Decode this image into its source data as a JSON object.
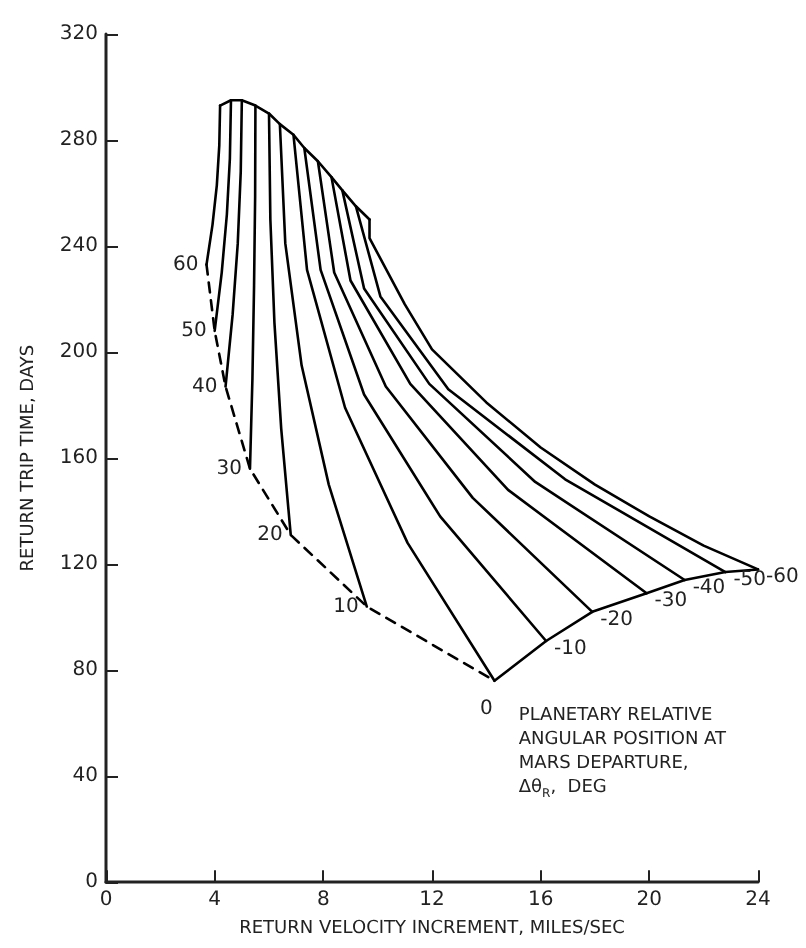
{
  "chart_data": {
    "type": "line",
    "xlabel": "RETURN VELOCITY INCREMENT, MILES/SEC",
    "ylabel": "RETURN TRIP TIME, DAYS",
    "xlim": [
      0,
      24
    ],
    "xticks": [
      0,
      4,
      8,
      12,
      16,
      20,
      24
    ],
    "ylim": [
      0,
      320
    ],
    "yticks": [
      0,
      40,
      80,
      120,
      160,
      200,
      240,
      280,
      320
    ],
    "grid": false,
    "legend": false,
    "marker": "none",
    "line_style": "solid",
    "annotations": [
      "PLANETARY RELATIVE\nANGULAR POSITION AT\nMARS DEPARTURE,\nΔθ$_{R}$,  DEG"
    ],
    "series": [
      {
        "name": "60",
        "color": "#000000",
        "x": [
          4.2,
          4.17,
          4.08,
          3.92,
          3.7
        ],
        "values": [
          293,
          278,
          263,
          248,
          233
        ]
      },
      {
        "name": "50",
        "color": "#000000",
        "x": [
          4.6,
          4.56,
          4.45,
          4.26,
          4.0
        ],
        "values": [
          295,
          273,
          252,
          230,
          208
        ]
      },
      {
        "name": "40",
        "color": "#000000",
        "x": [
          5.0,
          4.96,
          4.85,
          4.66,
          4.4
        ],
        "values": [
          295,
          268,
          241,
          214,
          187
        ]
      },
      {
        "name": "30",
        "color": "#000000",
        "x": [
          5.5,
          5.49,
          5.45,
          5.39,
          5.3
        ],
        "values": [
          293,
          259,
          225,
          190,
          156
        ]
      },
      {
        "name": "20",
        "color": "#000000",
        "x": [
          6.0,
          6.05,
          6.2,
          6.45,
          6.8
        ],
        "values": [
          290,
          250,
          211,
          171,
          131
        ]
      },
      {
        "name": "10",
        "color": "#000000",
        "x": [
          6.4,
          6.6,
          7.2,
          8.2,
          9.6
        ],
        "values": [
          286,
          241,
          195,
          150,
          104
        ]
      },
      {
        "name": "0",
        "color": "#000000",
        "x": [
          6.9,
          7.4,
          8.8,
          11.1,
          14.3
        ],
        "values": [
          282,
          231,
          179,
          128,
          76
        ]
      },
      {
        "name": "-10",
        "color": "#000000",
        "x": [
          7.3,
          7.9,
          9.5,
          12.3,
          16.2
        ],
        "values": [
          277,
          231,
          184,
          138,
          91
        ]
      },
      {
        "name": "-20",
        "color": "#000000",
        "x": [
          7.8,
          8.4,
          10.3,
          13.5,
          17.9
        ],
        "values": [
          272,
          230,
          187,
          145,
          102
        ]
      },
      {
        "name": "-30",
        "color": "#000000",
        "x": [
          8.3,
          9.0,
          11.2,
          14.8,
          19.9
        ],
        "values": [
          266,
          227,
          188,
          148,
          109
        ]
      },
      {
        "name": "-40",
        "color": "#000000",
        "x": [
          8.7,
          9.5,
          11.9,
          15.8,
          21.3
        ],
        "values": [
          261,
          224,
          188,
          151,
          114
        ]
      },
      {
        "name": "-50",
        "color": "#000000",
        "x": [
          9.2,
          10.1,
          12.6,
          16.9,
          22.8
        ],
        "values": [
          255,
          221,
          186,
          152,
          117
        ]
      },
      {
        "name": "-60",
        "color": "#000000",
        "x": [
          9.7,
          9.7,
          11,
          12,
          14,
          16,
          18,
          20,
          22,
          24
        ],
        "values": [
          250,
          243,
          218,
          201,
          181,
          164,
          150,
          138,
          127,
          118
        ]
      },
      {
        "color": "#000000",
        "x": [
          4.2,
          4.6,
          5.0,
          5.5,
          6.0,
          6.4,
          6.9,
          7.3,
          7.8,
          8.3,
          8.7,
          9.2,
          9.7
        ],
        "values": [
          293,
          295,
          295,
          293,
          290,
          286,
          282,
          277,
          272,
          266,
          261,
          255,
          250
        ]
      },
      {
        "color": "#000000",
        "line_style": "dashed",
        "x": [
          3.7,
          4.0,
          4.4,
          5.3,
          6.8,
          9.6,
          14.3
        ],
        "values": [
          233,
          208,
          187,
          156,
          131,
          104,
          76
        ]
      },
      {
        "color": "#000000",
        "x": [
          14.3,
          16.2,
          17.9,
          19.9,
          21.3,
          22.8,
          24.0
        ],
        "values": [
          76,
          91,
          102,
          109,
          114,
          117,
          118
        ]
      }
    ]
  }
}
